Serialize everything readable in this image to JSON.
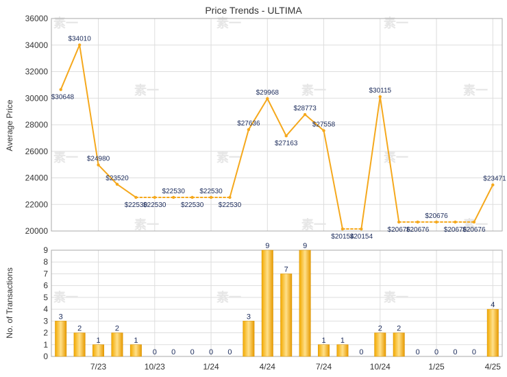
{
  "chart_data": [
    {
      "type": "line",
      "title": "Price Trends - ULTIMA",
      "ylabel": "Average Price",
      "ylim": [
        20000,
        36000
      ],
      "yticks": [
        20000,
        22000,
        24000,
        26000,
        28000,
        30000,
        32000,
        34000,
        36000
      ],
      "grid": true,
      "color": "#f5a81c",
      "series": [
        {
          "values": [
            30648,
            34010,
            24980,
            23520,
            22530,
            22530,
            22530,
            22530,
            22530,
            22530,
            27636,
            29968,
            27163,
            28773,
            27558,
            20154,
            20154,
            30115,
            20676,
            20676,
            20676,
            20676,
            20676,
            23471
          ],
          "labels": [
            "$30648",
            "$34010",
            "$24980",
            "$23520",
            "$22530",
            "$22530",
            "$22530",
            "$22530",
            "$22530",
            "$22530",
            "$27636",
            "$29968",
            "$27163",
            "$28773",
            "$27558",
            "$20154",
            "$20154",
            "$30115",
            "$20676",
            "$20676",
            "$20676",
            "$20676",
            "$20676",
            "$23471"
          ],
          "dashed": [
            false,
            false,
            false,
            false,
            true,
            true,
            true,
            true,
            true,
            false,
            false,
            false,
            false,
            false,
            false,
            true,
            false,
            false,
            true,
            true,
            true,
            true,
            false
          ]
        }
      ]
    },
    {
      "type": "bar",
      "ylabel": "No. of Transactions",
      "ylim": [
        0,
        9
      ],
      "yticks": [
        0,
        1,
        2,
        3,
        4,
        5,
        6,
        7,
        8,
        9
      ],
      "grid": true,
      "values": [
        3,
        2,
        1,
        2,
        1,
        0,
        0,
        0,
        0,
        0,
        3,
        9,
        7,
        9,
        1,
        1,
        0,
        2,
        2,
        0,
        0,
        0,
        0,
        4
      ],
      "x_tick_labels": [
        {
          "label": "7/23",
          "index": 2
        },
        {
          "label": "10/23",
          "index": 5
        },
        {
          "label": "1/24",
          "index": 8
        },
        {
          "label": "4/24",
          "index": 11
        },
        {
          "label": "7/24",
          "index": 14
        },
        {
          "label": "10/24",
          "index": 17
        },
        {
          "label": "1/25",
          "index": 20
        },
        {
          "label": "4/25",
          "index": 23
        }
      ]
    }
  ],
  "watermark": "素一"
}
